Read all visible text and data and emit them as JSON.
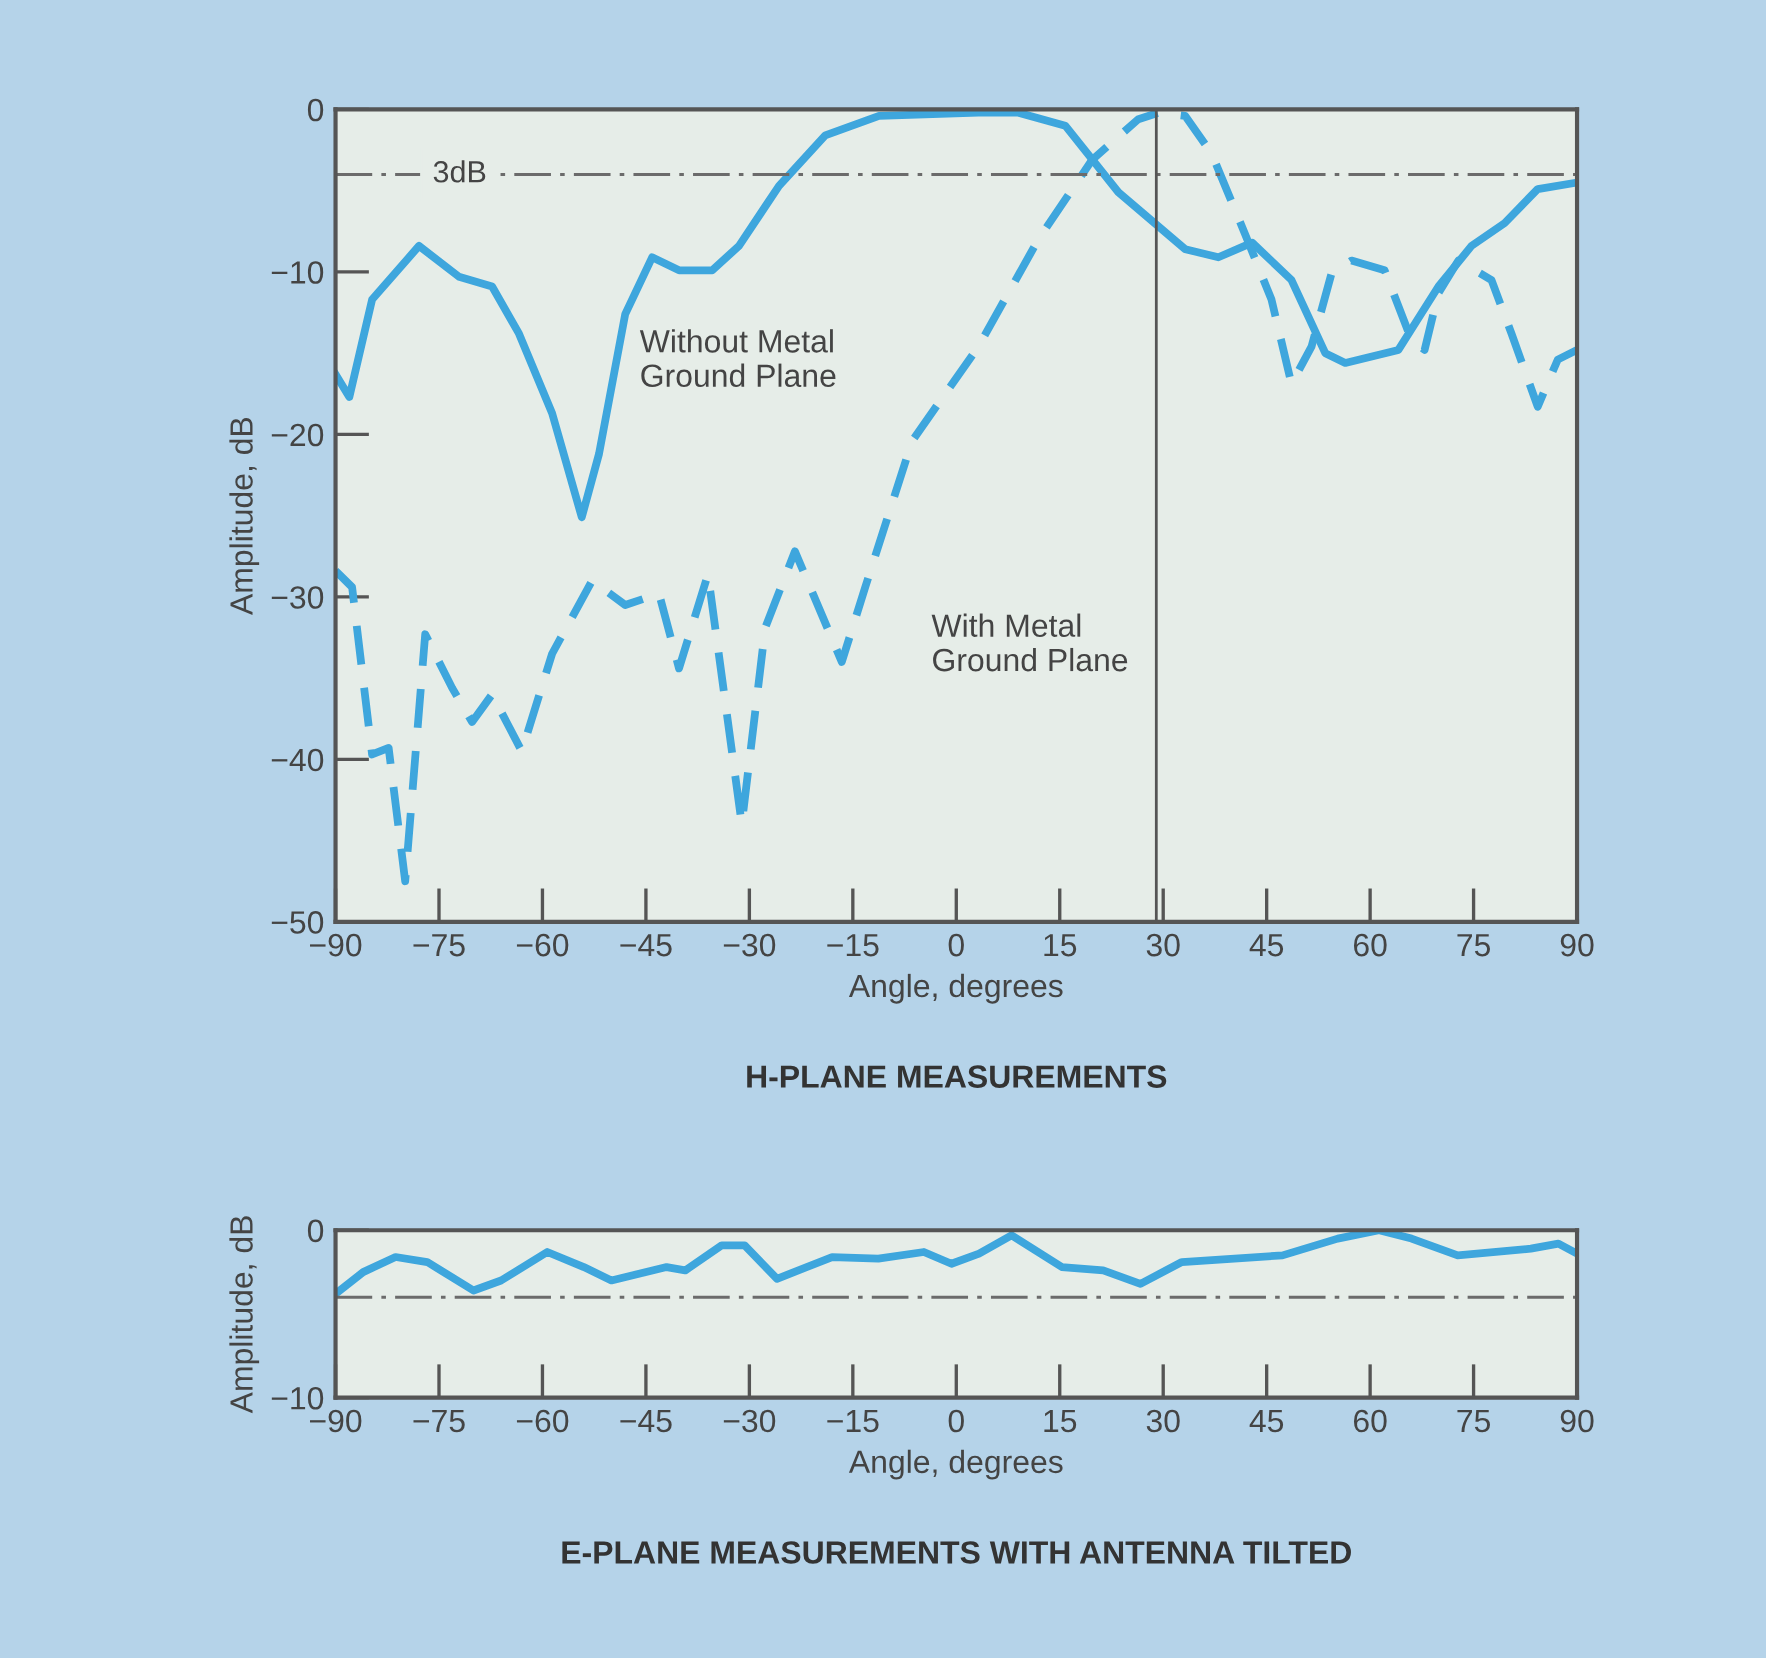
{
  "chart_data": [
    {
      "type": "line",
      "title": "H-PLANE MEASUREMENTS",
      "xlabel": "Angle, degrees",
      "ylabel": "Amplitude, dB",
      "xlim": [
        -90,
        90
      ],
      "xticks": [
        -90,
        -75,
        -60,
        -45,
        -30,
        -15,
        0,
        15,
        30,
        45,
        60,
        75,
        90
      ],
      "ylim": [
        -50,
        0
      ],
      "yticks": [
        {
          "value": -50,
          "label": "−50"
        },
        {
          "value": -40,
          "label": "−40"
        },
        {
          "value": -30,
          "label": "−30"
        },
        {
          "value": -20,
          "label": "−20"
        },
        {
          "value": -10,
          "label": "−10"
        },
        0
      ],
      "grid": false,
      "legend": false,
      "ref_lines": [
        {
          "axis": "y",
          "value": -4,
          "label": "3dB",
          "line_style": "dashdot",
          "color": "#6b6b6b"
        },
        {
          "axis": "x",
          "value": 29,
          "color": "#555555",
          "line_style": "solid"
        }
      ],
      "series": [
        {
          "name": "Without Metal\nGround Plane",
          "color": "#3ea6dd",
          "line_style": "solid",
          "x": [
            -90,
            -88,
            -84.7,
            -77.9,
            -72.1,
            -67.3,
            -63.4,
            -58.6,
            -54.3,
            -51.8,
            -48,
            -44.1,
            -40.2,
            -35.4,
            -31.5,
            -25.7,
            -19,
            -11.2,
            3.2,
            9,
            15.8,
            23.5,
            33.2,
            38,
            42.9,
            48.6,
            53.5,
            56.4,
            64.1,
            69.9,
            74.7,
            79.5,
            84.3,
            90
          ],
          "values": [
            -16.3,
            -17.7,
            -11.7,
            -8.4,
            -10.3,
            -10.9,
            -13.8,
            -18.7,
            -25.1,
            -21.2,
            -12.6,
            -9.1,
            -9.9,
            -9.9,
            -8.4,
            -4.7,
            -1.6,
            -0.4,
            -0.2,
            -0.2,
            -1.0,
            -5.1,
            -8.6,
            -9.1,
            -8.2,
            -10.5,
            -15.0,
            -15.6,
            -14.8,
            -10.9,
            -8.4,
            -7.0,
            -4.9,
            -4.5
          ]
        },
        {
          "name": "With Metal\nGround Plane",
          "color": "#3ea6dd",
          "line_style": "dashed",
          "x": [
            -90,
            -87.6,
            -84.7,
            -82.3,
            -79.9,
            -77,
            -73.1,
            -70.2,
            -67.3,
            -63,
            -58.6,
            -52.8,
            -48,
            -43.1,
            -40.2,
            -36,
            -31.1,
            -27.7,
            -23.4,
            -16.6,
            -13.2,
            -6.4,
            3.2,
            11.9,
            19.7,
            26.4,
            29.3,
            33.2,
            37,
            41.8,
            45.7,
            48.6,
            51.5,
            54.4,
            57.3,
            62.1,
            66,
            67.9,
            69.9,
            72.8,
            77.6,
            80.5,
            84.3,
            87.2,
            90
          ],
          "values": [
            -28.4,
            -29.4,
            -39.7,
            -39.3,
            -47.5,
            -32.3,
            -35.6,
            -37.7,
            -36,
            -39.5,
            -33.5,
            -29,
            -30.5,
            -29.8,
            -34.4,
            -28.6,
            -44,
            -31.9,
            -27.2,
            -34,
            -29.4,
            -20.4,
            -14.6,
            -8.0,
            -3.1,
            -0.6,
            -0.2,
            -0.4,
            -2.7,
            -7.6,
            -11.7,
            -16.9,
            -14.6,
            -10.1,
            -9.3,
            -9.9,
            -14.2,
            -14.8,
            -11.3,
            -9.3,
            -10.5,
            -13.8,
            -18.3,
            -15.4,
            -14.8
          ]
        }
      ]
    },
    {
      "type": "line",
      "title": "E-PLANE MEASUREMENTS WITH ANTENNA TILTED",
      "xlabel": "Angle, degrees",
      "ylabel": "Amplitude, dB",
      "xlim": [
        -90,
        90
      ],
      "xticks": [
        -90,
        -75,
        -60,
        -45,
        -30,
        -15,
        0,
        15,
        30,
        45,
        60,
        75,
        90
      ],
      "ylim": [
        -10,
        0
      ],
      "yticks": [
        {
          "value": -10,
          "label": "−10"
        },
        0
      ],
      "grid": false,
      "legend": false,
      "ref_lines": [
        {
          "axis": "y",
          "value": -4,
          "line_style": "dashdot",
          "color": "#6b6b6b"
        }
      ],
      "series": [
        {
          "color": "#3ea6dd",
          "line_style": "solid",
          "x": [
            -90,
            -86,
            -81.3,
            -76.7,
            -70,
            -66,
            -59.3,
            -54,
            -50,
            -42,
            -39.3,
            -34,
            -30.7,
            -26,
            -18,
            -11.3,
            -4.7,
            -0.7,
            3.3,
            8,
            15.3,
            21.3,
            26.7,
            32.7,
            47.3,
            55.3,
            61.3,
            66,
            72.7,
            83.3,
            87.3,
            90
          ],
          "values": [
            -3.8,
            -2.5,
            -1.6,
            -1.9,
            -3.6,
            -3.0,
            -1.3,
            -2.2,
            -3.0,
            -2.2,
            -2.4,
            -0.9,
            -0.9,
            -2.9,
            -1.6,
            -1.7,
            -1.3,
            -2.0,
            -1.4,
            -0.3,
            -2.2,
            -2.4,
            -3.2,
            -1.9,
            -1.5,
            -0.5,
            0,
            -0.5,
            -1.5,
            -1.1,
            -0.8,
            -1.4
          ]
        }
      ]
    }
  ]
}
